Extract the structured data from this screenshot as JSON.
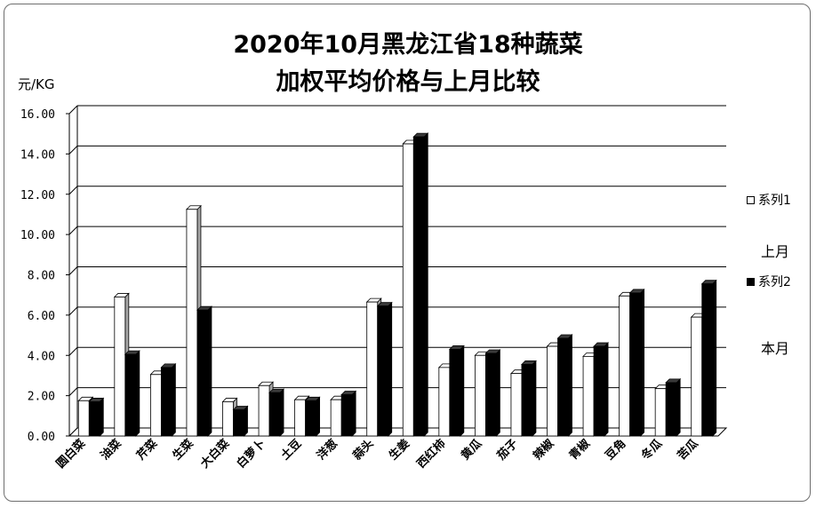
{
  "chart_data": {
    "type": "bar",
    "title_line1": "2020年10月黑龙江省18种蔬菜",
    "title_line2": "加权平均价格与上月比较",
    "ylabel": "元/KG",
    "ylim": [
      0,
      16
    ],
    "yticks": [
      "0.00",
      "2.00",
      "4.00",
      "6.00",
      "8.00",
      "10.00",
      "12.00",
      "14.00",
      "16.00"
    ],
    "grid": true,
    "legend_position": "right",
    "categories": [
      "圆白菜",
      "油菜",
      "芹菜",
      "生菜",
      "大白菜",
      "白萝卜",
      "土豆",
      "洋葱",
      "蒜头",
      "生姜",
      "西红柿",
      "黄瓜",
      "茄子",
      "辣椒",
      "青椒",
      "豆角",
      "冬瓜",
      "苦瓜"
    ],
    "series": [
      {
        "name": "系列1",
        "color": "#ffffff",
        "values": [
          1.75,
          6.9,
          3.05,
          11.25,
          1.7,
          2.5,
          1.8,
          1.8,
          6.65,
          14.5,
          3.4,
          4.0,
          3.1,
          4.45,
          3.95,
          6.95,
          2.35,
          5.9
        ]
      },
      {
        "name": "系列2",
        "color": "#000000",
        "values": [
          1.7,
          4.05,
          3.4,
          6.25,
          1.3,
          2.15,
          1.75,
          2.05,
          6.45,
          14.85,
          4.3,
          4.1,
          3.55,
          4.85,
          4.45,
          7.1,
          2.65,
          7.55
        ]
      }
    ],
    "legend_notes": [
      "上月",
      "本月"
    ]
  }
}
